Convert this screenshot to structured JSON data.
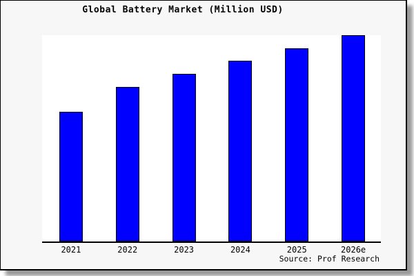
{
  "page": {
    "outer_background": "#ffffff",
    "card_background": "#f7f7f7",
    "frame_color": "#000000",
    "shadow_color": "#9a9a9a"
  },
  "chart_data": {
    "type": "bar",
    "title": "Global Battery Market (Million USD)",
    "categories": [
      "2021",
      "2022",
      "2023",
      "2024",
      "2025",
      "2026e"
    ],
    "values": [
      189,
      226,
      245,
      264,
      282,
      301
    ],
    "value_scale_note": "no y-axis ticks or value labels shown; values are relative bar heights",
    "xlabel": "",
    "ylabel": "",
    "ylim": [
      0,
      301
    ],
    "grid": false,
    "legend": false,
    "y_axis_visible": false,
    "bar_color": "#0000ff",
    "bar_border_color": "#000000",
    "plot_background": "#ffffff",
    "axis_color": "#000000",
    "title_color": "#000000",
    "tick_label_color": "#000000"
  },
  "source": {
    "text": "Source: Prof Research"
  }
}
